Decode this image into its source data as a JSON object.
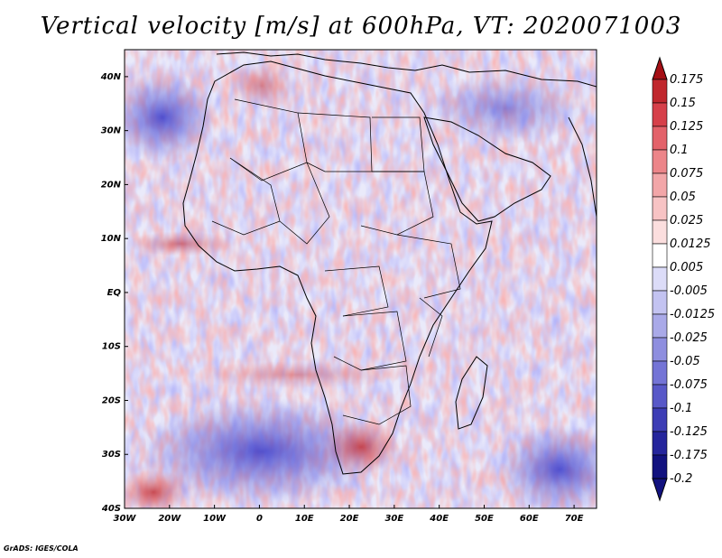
{
  "title": "Vertical velocity [m/s] at 600hPa, VT: 2020071003",
  "credit": "GrADS: IGES/COLA",
  "map": {
    "field": "vertical-velocity",
    "lon_range": [
      -30,
      75
    ],
    "lat_range": [
      -40,
      45
    ],
    "lat_ticks": [
      "40N",
      "30N",
      "20N",
      "10N",
      "EQ",
      "10S",
      "20S",
      "30S",
      "40S"
    ],
    "lon_ticks": [
      "30W",
      "20W",
      "10W",
      "0",
      "10E",
      "20E",
      "30E",
      "40E",
      "50E",
      "60E",
      "70E"
    ]
  },
  "colorbar": {
    "levels": [
      "0.175",
      "0.15",
      "0.125",
      "0.1",
      "0.075",
      "0.05",
      "0.025",
      "0.0125",
      "0.005",
      "-0.005",
      "-0.0125",
      "-0.025",
      "-0.05",
      "-0.075",
      "-0.1",
      "-0.125",
      "-0.175",
      "-0.2"
    ],
    "colors": [
      "#a50f15",
      "#c0272d",
      "#d6404a",
      "#e3626a",
      "#ec8589",
      "#f2a6a8",
      "#f7c3c4",
      "#fbdede",
      "#ffffff",
      "#dcdcf8",
      "#c3c3f1",
      "#a9a9e8",
      "#8e8edf",
      "#7474d6",
      "#5858c8",
      "#3d3db5",
      "#25259c",
      "#12127f"
    ]
  }
}
